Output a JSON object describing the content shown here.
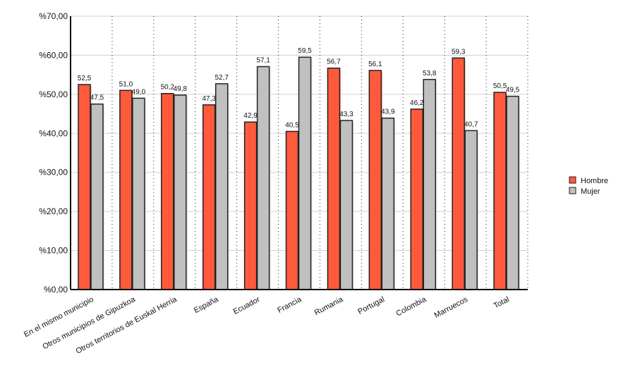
{
  "chart_data": {
    "type": "bar",
    "title": "",
    "xlabel": "",
    "ylabel": "",
    "ylim": [
      0,
      70
    ],
    "yticks": [
      "%0,00",
      "%10,00",
      "%20,00",
      "%30,00",
      "%40,00",
      "%50,00",
      "%60,00",
      "%70,00"
    ],
    "grid": true,
    "legend": "right",
    "categories": [
      "En el mismo municipio",
      "Otros municipios de Gipuzkoa",
      "Otros territorios de Euskal Herria",
      "España",
      "Ecuador",
      "Francia",
      "Rumania",
      "Portugal",
      "Colombia",
      "Marruecos",
      "Total"
    ],
    "series": [
      {
        "name": "Hombre",
        "color": "#ff5a3c",
        "values": [
          52.5,
          51.0,
          50.2,
          47.3,
          42.9,
          40.5,
          56.7,
          56.1,
          46.2,
          59.3,
          50.5
        ],
        "labels": [
          "52,5",
          "51,0",
          "50,2",
          "47,3",
          "42,9",
          "40,5",
          "56,7",
          "56,1",
          "46,2",
          "59,3",
          "50,5"
        ]
      },
      {
        "name": "Mujer",
        "color": "#c0c0c0",
        "values": [
          47.5,
          49.0,
          49.8,
          52.7,
          57.1,
          59.5,
          43.3,
          43.9,
          53.8,
          40.7,
          49.5
        ],
        "labels": [
          "47,5",
          "49,0",
          "49,8",
          "52,7",
          "57,1",
          "59,5",
          "43,3",
          "43,9",
          "53,8",
          "40,7",
          "49,5"
        ]
      }
    ]
  }
}
